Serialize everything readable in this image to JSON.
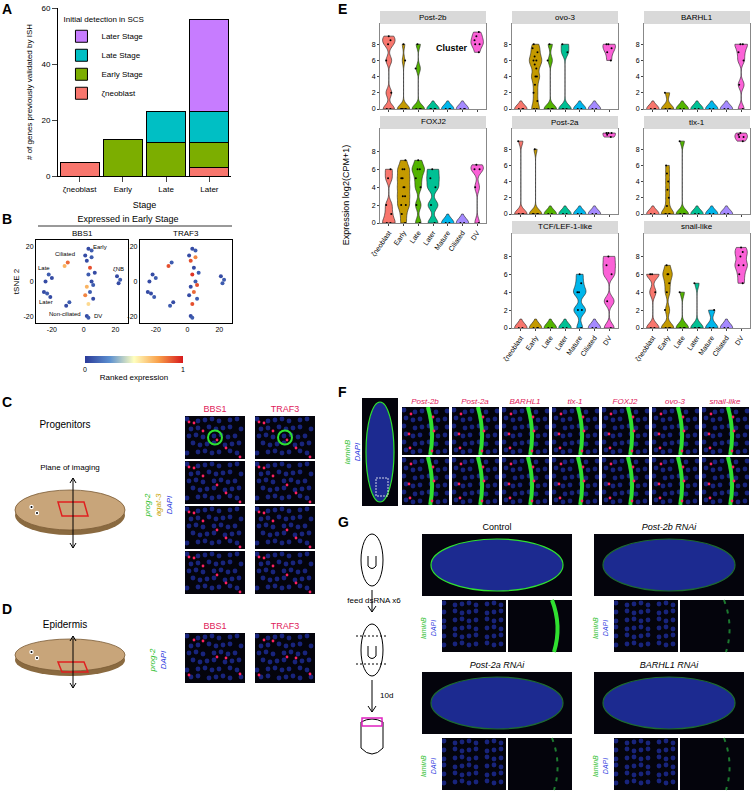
{
  "panel_labels": [
    "A",
    "B",
    "C",
    "D",
    "E",
    "F",
    "G"
  ],
  "chart_data": [
    {
      "type": "bar",
      "stacked": true,
      "categories": [
        "ζneoblast",
        "Early",
        "Late",
        "Later"
      ],
      "series": [
        {
          "name": "ζneoblast",
          "color": "#f8766d",
          "values": [
            5,
            0,
            0,
            3
          ]
        },
        {
          "name": "Early Stage",
          "color": "#7cae00",
          "values": [
            0,
            13,
            12,
            9
          ]
        },
        {
          "name": "Late Stage",
          "color": "#00bfc4",
          "values": [
            0,
            0,
            11,
            11
          ]
        },
        {
          "name": "Later Stage",
          "color": "#c77cff",
          "values": [
            0,
            0,
            0,
            33
          ]
        }
      ],
      "legend_title": "Initial detection in SCS",
      "legend": "top left",
      "x_label": "Stage",
      "y_label": "# of genes previously validated by ISH",
      "ylim": [
        0,
        60
      ],
      "yticks": [
        0,
        20,
        40,
        60
      ],
      "grid": false
    },
    {
      "type": "scatter",
      "title": "BBS1",
      "y_label": "tSNE 2",
      "x": [
        2,
        4,
        3,
        5,
        2,
        4,
        6,
        3,
        1,
        5,
        7,
        1,
        6,
        3,
        5,
        21,
        23,
        22,
        -22,
        -20,
        -24,
        -23,
        -21,
        -25,
        -10,
        -12,
        -9,
        -11,
        2,
        3
      ],
      "y": [
        12,
        8,
        4,
        0,
        -3,
        -6,
        -10,
        -13,
        15,
        14,
        5,
        -8,
        -2,
        19,
        18,
        3,
        1,
        -1,
        4,
        2,
        0,
        -7,
        -9,
        -6,
        11,
        9,
        -12,
        -14,
        -20,
        -21
      ],
      "values": [
        0.05,
        0.9,
        0.1,
        0.05,
        0.7,
        0.1,
        0.05,
        0.6,
        0.05,
        0.1,
        0.05,
        0.8,
        0.1,
        0.05,
        0.1,
        0.05,
        0.1,
        0.05,
        0.1,
        0.05,
        0.05,
        0.1,
        0.05,
        0.05,
        0.85,
        0.7,
        0.1,
        0.05,
        0.05,
        0.1
      ],
      "xlim": [
        -30,
        28
      ],
      "ylim": [
        -24,
        24
      ],
      "xticks": [
        -20,
        0,
        20
      ],
      "yticks": [
        -20,
        0,
        20
      ],
      "annotations": [
        {
          "text": "Ciliated",
          "x": -12,
          "y": 16
        },
        {
          "text": "Early",
          "x": 10,
          "y": 20
        },
        {
          "text": "Late",
          "x": -25,
          "y": 8
        },
        {
          "text": "Later",
          "x": -24,
          "y": -12
        },
        {
          "text": "Non-ciliated",
          "x": -12,
          "y": -19
        },
        {
          "text": "ζNB",
          "x": 22,
          "y": 7
        },
        {
          "text": "DV",
          "x": 9,
          "y": -20
        }
      ]
    },
    {
      "type": "scatter",
      "title": "TRAF3",
      "x": [
        2,
        4,
        3,
        5,
        2,
        4,
        6,
        3,
        1,
        5,
        7,
        1,
        6,
        3,
        5,
        21,
        23,
        22,
        -22,
        -20,
        -24,
        -23,
        -21,
        -25,
        -10,
        -12,
        -9,
        -11,
        2,
        3
      ],
      "y": [
        12,
        8,
        4,
        0,
        -3,
        -6,
        -10,
        -13,
        15,
        14,
        5,
        -8,
        -2,
        19,
        18,
        3,
        1,
        -1,
        4,
        2,
        0,
        -7,
        -9,
        -6,
        11,
        9,
        -12,
        -14,
        -20,
        -21
      ],
      "values": [
        0.9,
        0.05,
        0.95,
        0.1,
        0.05,
        0.85,
        0.1,
        0.9,
        0.05,
        0.8,
        0.1,
        0.05,
        0.9,
        0.05,
        0.1,
        0.05,
        0.1,
        0.1,
        0.05,
        0.1,
        0.05,
        0.05,
        0.1,
        0.05,
        0.1,
        0.9,
        0.05,
        0.1,
        0.05,
        0.1
      ],
      "xlim": [
        -30,
        28
      ],
      "ylim": [
        -24,
        24
      ],
      "xticks": [
        -20,
        0,
        20
      ],
      "yticks": [
        -20,
        0,
        20
      ]
    },
    {
      "type": "violin",
      "title": "Post-2b",
      "tick_labels": "y",
      "categories": [
        "ζneoblast",
        "Early",
        "Late",
        "Later",
        "Mature",
        "Ciliated",
        "DV"
      ],
      "colors": [
        "#f8766d",
        "#c49a00",
        "#53b400",
        "#00c094",
        "#00b6eb",
        "#a58aff",
        "#fb61d7"
      ],
      "samples": [
        [
          0,
          0,
          2,
          6,
          8,
          8.5,
          9
        ],
        [
          0,
          0,
          0,
          0,
          0,
          6,
          8
        ],
        [
          0,
          0,
          0,
          5,
          8
        ],
        [
          0,
          0,
          0,
          0
        ],
        [
          0,
          0,
          0
        ],
        [
          0,
          0,
          0
        ],
        [
          7,
          8,
          8.5,
          9,
          9.5,
          8
        ]
      ],
      "ylim": [
        0,
        10.5
      ],
      "yticks": [
        0,
        2,
        4,
        6,
        8
      ],
      "annotations": [
        {
          "text": "Cluster",
          "x": 4.3,
          "y": 7.5
        }
      ]
    },
    {
      "type": "violin",
      "title": "ovo-3",
      "tick_labels": "y",
      "categories": [
        "ζneoblast",
        "Early",
        "Late",
        "Later",
        "Mature",
        "Ciliated",
        "DV"
      ],
      "colors": [
        "#f8766d",
        "#c49a00",
        "#53b400",
        "#00c094",
        "#00b6eb",
        "#a58aff",
        "#fb61d7"
      ],
      "samples": [
        [
          0,
          0,
          0
        ],
        [
          0,
          0,
          1,
          2,
          3,
          4,
          5,
          5.5,
          6,
          6.5,
          7,
          7.5,
          8,
          6,
          4
        ],
        [
          0,
          0,
          0,
          6,
          8
        ],
        [
          0,
          0,
          7,
          8
        ],
        [
          0,
          0
        ],
        [
          0,
          0
        ],
        [
          6,
          7,
          7.5,
          8,
          8
        ]
      ],
      "ylim": [
        0,
        10.5
      ],
      "yticks": [
        0,
        2,
        4,
        6,
        8
      ]
    },
    {
      "type": "violin",
      "title": "BARHL1",
      "tick_labels": "y",
      "categories": [
        "ζneoblast",
        "Early",
        "Late",
        "Later",
        "Mature",
        "Ciliated",
        "DV"
      ],
      "colors": [
        "#f8766d",
        "#c49a00",
        "#53b400",
        "#00c094",
        "#00b6eb",
        "#a58aff",
        "#fb61d7"
      ],
      "samples": [
        [
          0,
          0,
          0
        ],
        [
          0,
          0,
          0,
          2
        ],
        [
          0,
          0
        ],
        [
          0,
          0
        ],
        [
          0,
          0
        ],
        [
          0,
          0
        ],
        [
          0,
          3,
          6,
          7,
          8,
          8
        ]
      ],
      "ylim": [
        0,
        10.5
      ],
      "yticks": [
        0,
        2,
        4,
        6,
        8
      ]
    },
    {
      "type": "violin",
      "title": "FOXJ2",
      "categories": [
        "ζneoblast",
        "Early",
        "Late",
        "Later",
        "Mature",
        "Ciliated",
        "DV"
      ],
      "colors": [
        "#f8766d",
        "#c49a00",
        "#53b400",
        "#00c094",
        "#00b6eb",
        "#a58aff",
        "#fb61d7"
      ],
      "samples": [
        [
          0,
          0,
          1,
          2,
          5,
          6
        ],
        [
          0,
          1,
          2,
          3,
          4,
          5,
          6,
          7,
          5,
          4,
          3,
          2,
          6
        ],
        [
          0,
          2,
          4,
          5,
          6,
          7,
          6
        ],
        [
          0,
          2,
          4,
          6,
          5
        ],
        [
          0,
          0
        ],
        [
          0,
          0
        ],
        [
          0,
          4,
          6,
          6.5,
          6
        ]
      ],
      "ylim": [
        0,
        10.5
      ],
      "yticks": [
        0,
        2,
        4,
        6,
        8
      ]
    },
    {
      "type": "violin",
      "title": "Post-2a",
      "tick_labels": "y",
      "categories": [
        "ζneoblast",
        "Early",
        "Late",
        "Later",
        "Mature",
        "Ciliated",
        "DV"
      ],
      "colors": [
        "#f8766d",
        "#c49a00",
        "#53b400",
        "#00c094",
        "#00b6eb",
        "#a58aff",
        "#fb61d7"
      ],
      "samples": [
        [
          0,
          0,
          0,
          9
        ],
        [
          0,
          0,
          0,
          0,
          8
        ],
        [
          0,
          0
        ],
        [
          0,
          0
        ],
        [
          0,
          0
        ],
        [
          0,
          0
        ],
        [
          9.5,
          10,
          10,
          9.8,
          10
        ]
      ],
      "ylim": [
        0,
        10.5
      ],
      "yticks": [
        0,
        2,
        4,
        6,
        8
      ]
    },
    {
      "type": "violin",
      "title": "tlx-1",
      "tick_labels": "y",
      "categories": [
        "ζneoblast",
        "Early",
        "Late",
        "Later",
        "Mature",
        "Ciliated",
        "DV"
      ],
      "colors": [
        "#f8766d",
        "#c49a00",
        "#53b400",
        "#00c094",
        "#00b6eb",
        "#a58aff",
        "#fb61d7"
      ],
      "samples": [
        [
          0,
          0
        ],
        [
          0,
          0,
          1,
          2,
          3,
          4,
          5,
          6,
          0,
          0
        ],
        [
          0,
          0,
          0,
          9
        ],
        [
          0,
          0
        ],
        [
          0,
          0
        ],
        [
          0,
          0
        ],
        [
          9,
          9.5,
          9.8,
          10,
          9.5
        ]
      ],
      "ylim": [
        0,
        10.5
      ],
      "yticks": [
        0,
        2,
        4,
        6,
        8
      ]
    },
    {
      "type": "violin",
      "title": "TCF/LEF-1-like",
      "categories": [
        "ζneoblast",
        "Early",
        "Late",
        "Later",
        "Mature",
        "Ciliated",
        "DV"
      ],
      "colors": [
        "#f8766d",
        "#c49a00",
        "#53b400",
        "#00c094",
        "#00b6eb",
        "#a58aff",
        "#fb61d7"
      ],
      "samples": [
        [
          0,
          0
        ],
        [
          0,
          0,
          0
        ],
        [
          0,
          0
        ],
        [
          0,
          0
        ],
        [
          0,
          2,
          4,
          5,
          6,
          4,
          2
        ],
        [
          0,
          0
        ],
        [
          0,
          3,
          6,
          7,
          8
        ]
      ],
      "ylim": [
        0,
        10.5
      ],
      "yticks": [
        0,
        2,
        4,
        6,
        8
      ]
    },
    {
      "type": "violin",
      "title": "snail-like",
      "categories": [
        "ζneoblast",
        "Early",
        "Late",
        "Later",
        "Mature",
        "Ciliated",
        "DV"
      ],
      "colors": [
        "#f8766d",
        "#c49a00",
        "#53b400",
        "#00c094",
        "#00b6eb",
        "#a58aff",
        "#fb61d7"
      ],
      "samples": [
        [
          0,
          0,
          4,
          6,
          6
        ],
        [
          0,
          0,
          2,
          4,
          5,
          6,
          6,
          7,
          0
        ],
        [
          0,
          0,
          0,
          4
        ],
        [
          0,
          0,
          0,
          5
        ],
        [
          0,
          0,
          2
        ],
        [
          0,
          0
        ],
        [
          5,
          6,
          7,
          8,
          8.5,
          9,
          7
        ]
      ],
      "ylim": [
        0,
        10.5
      ],
      "yticks": [
        0,
        2,
        4,
        6,
        8
      ]
    }
  ],
  "panel_B": {
    "header": "Expressed in Early Stage",
    "colorbar": {
      "title": "Ranked expression",
      "range": [
        0,
        1
      ],
      "ticks": [
        0,
        1
      ]
    }
  },
  "panel_C": {
    "row_title": "Progenitors",
    "cartoon_label": "Plane of imaging",
    "stains": [
      {
        "text": "prog-2",
        "color": "#2fc02f"
      },
      {
        "text": "agat-3",
        "color": "#c9a400"
      },
      {
        "text": "DAPI",
        "color": "#3040e0"
      }
    ],
    "columns": [
      {
        "text": "BBS1",
        "color": "#e0205a"
      },
      {
        "text": "TRAF3",
        "color": "#e0205a"
      }
    ]
  },
  "panel_D": {
    "row_title": "Epidermis",
    "stains": [
      {
        "text": "prog-2",
        "color": "#2fc02f"
      },
      {
        "text": "DAPI",
        "color": "#3040e0"
      }
    ],
    "columns": [
      {
        "text": "BBS1",
        "color": "#e0205a"
      },
      {
        "text": "TRAF3",
        "color": "#e0205a"
      }
    ]
  },
  "panel_E": {
    "y_label": "Expression log2(CPM+1)"
  },
  "panel_F": {
    "stains": [
      {
        "text": "laminB",
        "color": "#2fc02f"
      },
      {
        "text": "DAPI",
        "color": "#3040e0"
      }
    ],
    "columns": [
      {
        "text": "Post-2b",
        "color": "#e0205a"
      },
      {
        "text": "Post-2a",
        "color": "#e0205a"
      },
      {
        "text": "BARHL1",
        "color": "#e0205a"
      },
      {
        "text": "tlx-1",
        "color": "#e0205a"
      },
      {
        "text": "FOXJ2",
        "color": "#e0205a"
      },
      {
        "text": "ovo-3",
        "color": "#e0205a"
      },
      {
        "text": "snail-like",
        "color": "#e0205a"
      }
    ]
  },
  "panel_G": {
    "steps": [
      "feed dsRNA x6",
      "10d"
    ],
    "conditions": [
      "Control",
      "Post-2b RNAi",
      "Post-2a RNAi",
      "BARHL1 RNAi"
    ],
    "stains": [
      {
        "text": "laminB",
        "color": "#2fc02f"
      },
      {
        "text": "DAPI",
        "color": "#3040e0"
      }
    ]
  }
}
